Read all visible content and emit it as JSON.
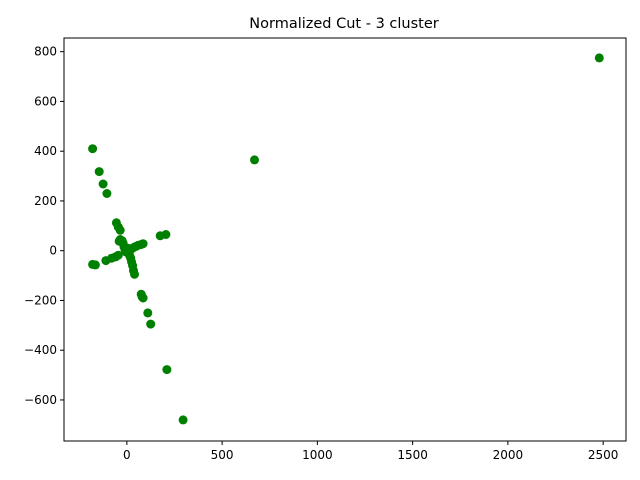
{
  "chart_data": {
    "type": "scatter",
    "title": "Normalized Cut - 3 cluster",
    "xlabel": "",
    "ylabel": "",
    "xlim": [
      -330,
      2620
    ],
    "ylim": [
      -765,
      855
    ],
    "xticks": [
      0,
      500,
      1000,
      1500,
      2000,
      2500
    ],
    "yticks": [
      -600,
      -400,
      -200,
      0,
      200,
      400,
      600,
      800
    ],
    "grid": false,
    "marker_color": "#008000",
    "series": [
      {
        "points": [
          [
            2480,
            775
          ],
          [
            670,
            365
          ],
          [
            -180,
            410
          ],
          [
            -145,
            318
          ],
          [
            -125,
            268
          ],
          [
            -105,
            230
          ],
          [
            -55,
            112
          ],
          [
            -45,
            95
          ],
          [
            -35,
            82
          ],
          [
            -180,
            -55
          ],
          [
            -165,
            -57
          ],
          [
            -110,
            -40
          ],
          [
            -80,
            -30
          ],
          [
            -60,
            -25
          ],
          [
            -45,
            -18
          ],
          [
            -40,
            38
          ],
          [
            -35,
            45
          ],
          [
            -25,
            40
          ],
          [
            -20,
            30
          ],
          [
            -15,
            15
          ],
          [
            -10,
            5
          ],
          [
            -5,
            -5
          ],
          [
            0,
            0
          ],
          [
            5,
            10
          ],
          [
            10,
            -10
          ],
          [
            15,
            -20
          ],
          [
            20,
            -30
          ],
          [
            25,
            -45
          ],
          [
            30,
            -60
          ],
          [
            35,
            -80
          ],
          [
            40,
            -95
          ],
          [
            20,
            5
          ],
          [
            30,
            10
          ],
          [
            40,
            15
          ],
          [
            50,
            18
          ],
          [
            60,
            22
          ],
          [
            75,
            25
          ],
          [
            85,
            28
          ],
          [
            175,
            60
          ],
          [
            205,
            65
          ],
          [
            75,
            -175
          ],
          [
            80,
            -185
          ],
          [
            85,
            -190
          ],
          [
            110,
            -250
          ],
          [
            125,
            -295
          ],
          [
            210,
            -478
          ],
          [
            295,
            -680
          ]
        ]
      }
    ]
  }
}
